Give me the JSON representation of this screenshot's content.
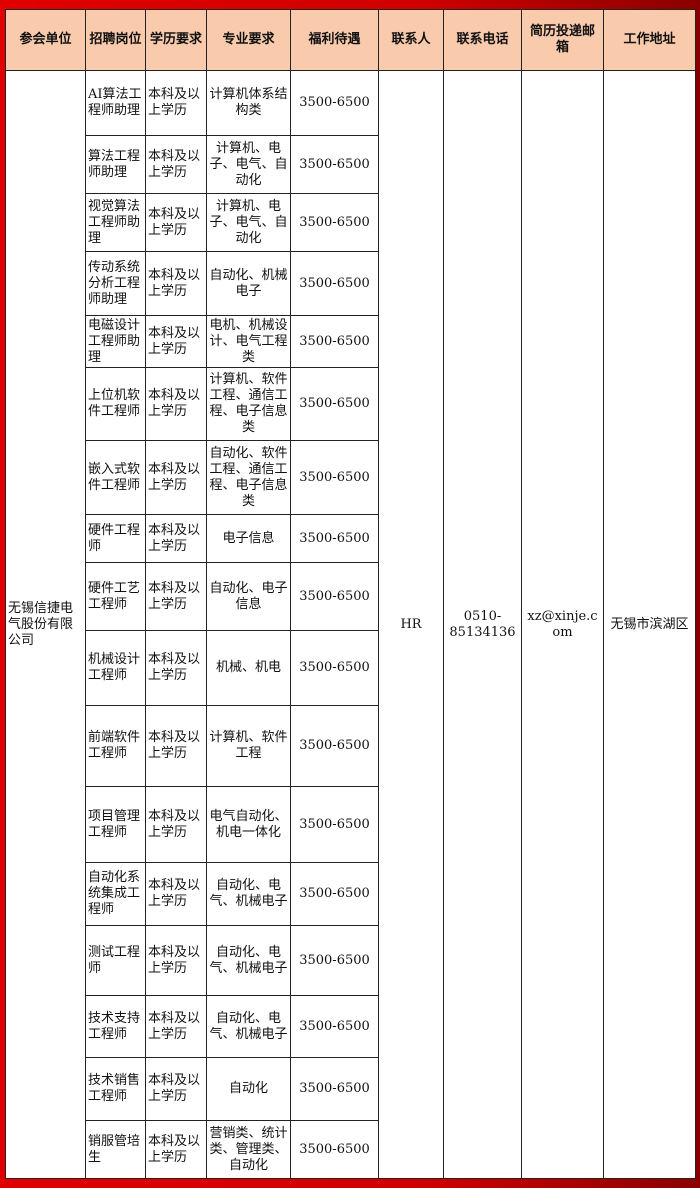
{
  "headers": [
    "参会单位",
    "招聘岗位",
    "学历要求",
    "专业要求",
    "福利待遇",
    "联系人",
    "联系电话",
    "简历投递邮箱",
    "工作地址"
  ],
  "company": "无锡信捷电气股份有限公司",
  "contact": "HR",
  "phone": "0510-85134136",
  "email": "xz@xinje.com",
  "address": "无锡市滨湖区",
  "jobs": [
    {
      "title": "AI算法工程师助理",
      "edu": "本科及以上学历",
      "major": "计算机体系结构类",
      "pay": "3500-6500"
    },
    {
      "title": "算法工程师助理",
      "edu": "本科及以上学历",
      "major": "计算机、电子、电气、自动化",
      "pay": "3500-6500"
    },
    {
      "title": "视觉算法工程师助理",
      "edu": "本科及以上学历",
      "major": "计算机、电子、电气、自动化",
      "pay": "3500-6500"
    },
    {
      "title": "传动系统分析工程师助理",
      "edu": "本科及以上学历",
      "major": "自动化、机械电子",
      "pay": "3500-6500"
    },
    {
      "title": "电磁设计工程师助理",
      "edu": "本科及以上学历",
      "major": "电机、机械设计、电气工程类",
      "pay": "3500-6500"
    },
    {
      "title": "上位机软件工程师",
      "edu": "本科及以上学历",
      "major": "计算机、软件工程、通信工程、电子信息类",
      "pay": "3500-6500"
    },
    {
      "title": "嵌入式软件工程师",
      "edu": "本科及以上学历",
      "major": "自动化、软件工程、通信工程、电子信息类",
      "pay": "3500-6500"
    },
    {
      "title": "硬件工程师",
      "edu": "本科及以上学历",
      "major": "电子信息",
      "pay": "3500-6500"
    },
    {
      "title": "硬件工艺工程师",
      "edu": "本科及以上学历",
      "major": "自动化、电子信息",
      "pay": "3500-6500"
    },
    {
      "title": "机械设计工程师",
      "edu": "本科及以上学历",
      "major": "机械、机电",
      "pay": "3500-6500"
    },
    {
      "title": "前端软件工程师",
      "edu": "本科及以上学历",
      "major": "计算机、软件工程",
      "pay": "3500-6500"
    },
    {
      "title": "项目管理工程师",
      "edu": "本科及以上学历",
      "major": "电气自动化、机电一体化",
      "pay": "3500-6500"
    },
    {
      "title": "自动化系统集成工程师",
      "edu": "本科及以上学历",
      "major": "自动化、电气、机械电子",
      "pay": "3500-6500"
    },
    {
      "title": "测试工程师",
      "edu": "本科及以上学历",
      "major": "自动化、电气、机械电子",
      "pay": "3500-6500"
    },
    {
      "title": "技术支持工程师",
      "edu": "本科及以上学历",
      "major": "自动化、电气、机械电子",
      "pay": "3500-6500"
    },
    {
      "title": "技术销售工程师",
      "edu": "本科及以上学历",
      "major": "自动化",
      "pay": "3500-6500"
    },
    {
      "title": "销服管培生",
      "edu": "本科及以上学历",
      "major": "营销类、统计类、管理类、自动化",
      "pay": "3500-6500"
    }
  ]
}
